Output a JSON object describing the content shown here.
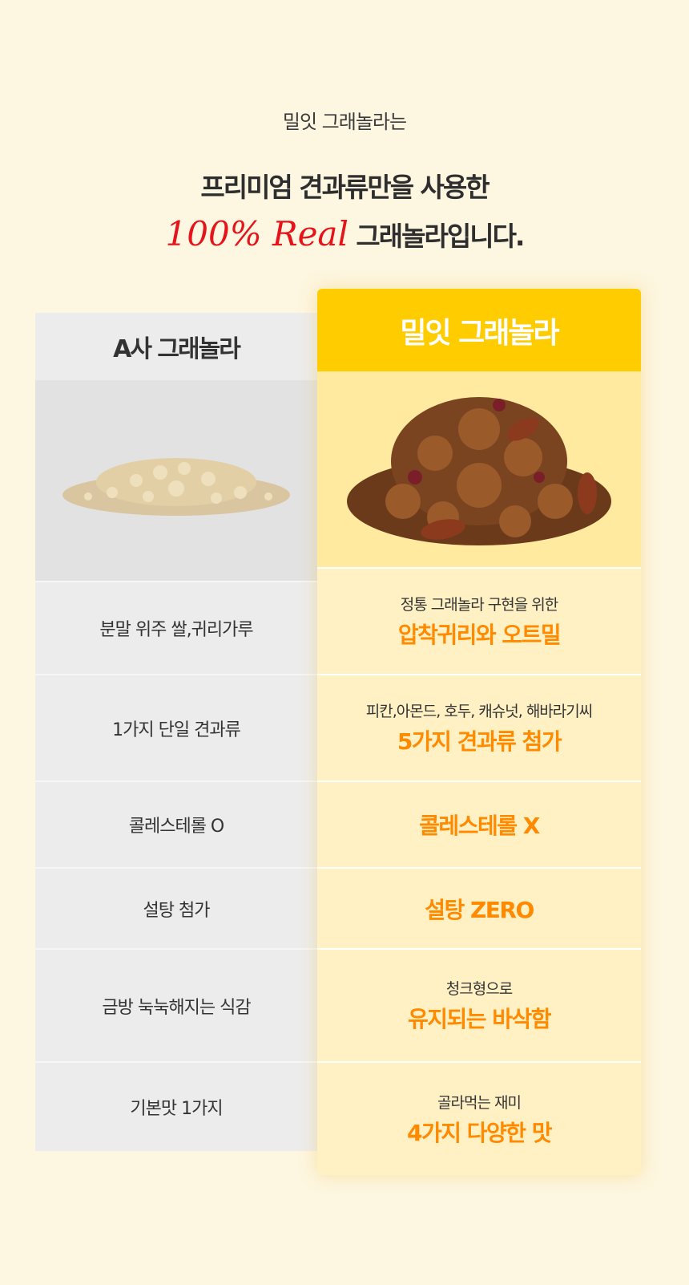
{
  "intro": "밀잇 그래놀라는",
  "headline": {
    "line1": "프리미엄 견과류만을 사용한",
    "real": "100% Real",
    "line2_rest": "그래놀라입니다."
  },
  "colors": {
    "accent": "#ffcc00",
    "highlight": "#ff8a00",
    "real": "#e5141b"
  },
  "competitor": {
    "title": "A사 그래놀라",
    "rows": [
      "분말 위주 쌀,귀리가루",
      "1가지 단일 견과류",
      "콜레스테롤 O",
      "설탕 첨가",
      "금방 눅눅해지는 식감",
      "기본맛 1가지"
    ]
  },
  "product": {
    "title": "밀잇 그래놀라",
    "rows": [
      {
        "sub": "정통 그래놀라 구현을 위한",
        "highlight": "압착귀리와 오트밀"
      },
      {
        "sub": "피칸,아몬드, 호두, 캐슈넛, 해바라기씨",
        "highlight": "5가지 견과류 첨가"
      },
      {
        "sub": "",
        "highlight": "콜레스테롤 X"
      },
      {
        "sub": "",
        "highlight": "설탕 ZERO"
      },
      {
        "sub": "청크형으로",
        "highlight": "유지되는 바삭함"
      },
      {
        "sub": "골라먹는 재미",
        "highlight": "4가지 다양한 맛"
      }
    ]
  }
}
